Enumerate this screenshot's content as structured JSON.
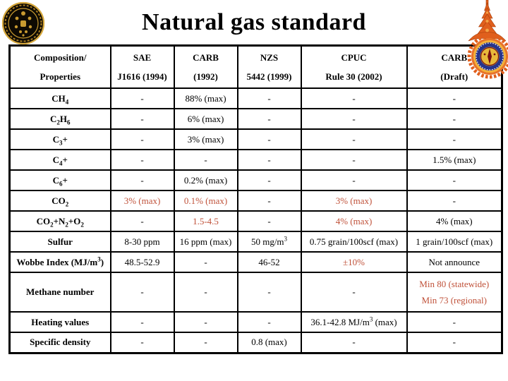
{
  "title": "Natural gas standard",
  "colors": {
    "accent_red": "#c0523a",
    "table_border": "#000000",
    "background": "#ffffff",
    "title_text": "#000000"
  },
  "logos": {
    "left_icon": "gold-medallion-emblem",
    "right_icon": "thai-crown-crest-emblem"
  },
  "table": {
    "header": {
      "rowcol": {
        "line1": "Composition/",
        "line2": "Properties"
      },
      "columns": [
        {
          "line1": "SAE",
          "line2": "J1616 (1994)"
        },
        {
          "line1": "CARB",
          "line2": "(1992)"
        },
        {
          "line1": "NZS",
          "line2": "5442 (1999)"
        },
        {
          "line1": "CPUC",
          "line2": "Rule 30 (2002)"
        },
        {
          "line1": "CARB",
          "line2": "(Draft)"
        }
      ]
    },
    "rows": [
      {
        "label": "CH~4~",
        "cells": [
          {
            "text": "-"
          },
          {
            "text": "88% (max)"
          },
          {
            "text": "-"
          },
          {
            "text": "-"
          },
          {
            "text": "-"
          }
        ]
      },
      {
        "label": "C~2~H~6~",
        "cells": [
          {
            "text": "-"
          },
          {
            "text": "6% (max)"
          },
          {
            "text": "-"
          },
          {
            "text": "-"
          },
          {
            "text": "-"
          }
        ]
      },
      {
        "label": "C~3~+",
        "cells": [
          {
            "text": "-"
          },
          {
            "text": "3% (max)"
          },
          {
            "text": "-"
          },
          {
            "text": "-"
          },
          {
            "text": "-"
          }
        ]
      },
      {
        "label": "C~4~+",
        "cells": [
          {
            "text": "-"
          },
          {
            "text": "-"
          },
          {
            "text": "-"
          },
          {
            "text": "-"
          },
          {
            "text": "1.5% (max)"
          }
        ]
      },
      {
        "label": "C~6~+",
        "cells": [
          {
            "text": "-"
          },
          {
            "text": "0.2% (max)"
          },
          {
            "text": "-"
          },
          {
            "text": "-"
          },
          {
            "text": "-"
          }
        ]
      },
      {
        "label": "CO~2~",
        "cells": [
          {
            "text": "3% (max)",
            "red": true
          },
          {
            "text": "0.1% (max)",
            "red": true
          },
          {
            "text": "-"
          },
          {
            "text": "3% (max)",
            "red": true
          },
          {
            "text": "-"
          }
        ]
      },
      {
        "label": "CO~2~+N~2~+O~2~",
        "cells": [
          {
            "text": "-"
          },
          {
            "text": "1.5-4.5",
            "red": true
          },
          {
            "text": "-"
          },
          {
            "text": "4% (max)",
            "red": true
          },
          {
            "text": "4% (max)"
          }
        ]
      },
      {
        "label": "Sulfur",
        "cells": [
          {
            "text": "8-30 ppm"
          },
          {
            "text": "16 ppm (max)"
          },
          {
            "text": "50 mg/m^3^"
          },
          {
            "text": "0.75 grain/100scf (max)"
          },
          {
            "text": "1 grain/100scf (max)"
          }
        ]
      },
      {
        "label": "Wobbe Index (MJ/m^3^)",
        "cells": [
          {
            "text": "48.5-52.9"
          },
          {
            "text": "-"
          },
          {
            "text": "46-52"
          },
          {
            "text": "±10%",
            "red": true
          },
          {
            "text": "Not announce"
          }
        ]
      },
      {
        "label": "Methane number",
        "tall": true,
        "cells": [
          {
            "text": "-"
          },
          {
            "text": "-"
          },
          {
            "text": "-"
          },
          {
            "text": "-"
          },
          {
            "lines": [
              "Min 80 (statewide)",
              "Min 73 (regional)"
            ],
            "red": true
          }
        ]
      },
      {
        "label": "Heating values",
        "cells": [
          {
            "text": "-"
          },
          {
            "text": "-"
          },
          {
            "text": "-"
          },
          {
            "text": "36.1-42.8 MJ/m^3^ (max)"
          },
          {
            "text": "-"
          }
        ]
      },
      {
        "label": "Specific density",
        "cells": [
          {
            "text": "-"
          },
          {
            "text": "-"
          },
          {
            "text": "0.8 (max)"
          },
          {
            "text": "-"
          },
          {
            "text": "-"
          }
        ]
      }
    ]
  }
}
